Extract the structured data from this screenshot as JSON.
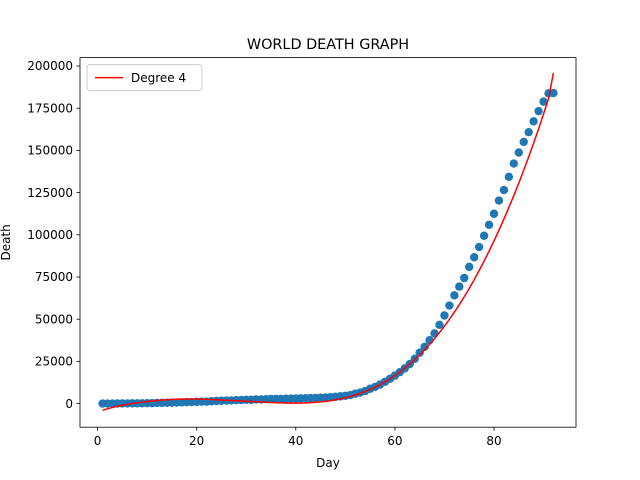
{
  "chart_data": {
    "type": "scatter",
    "title": "WORLD DEATH GRAPH",
    "xlabel": "Day",
    "ylabel": "Death",
    "xlim": [
      -3.55,
      96.55
    ],
    "ylim": [
      -14000,
      205000
    ],
    "xticks": [
      0,
      20,
      40,
      60,
      80
    ],
    "yticks": [
      0,
      25000,
      50000,
      75000,
      100000,
      125000,
      150000,
      175000,
      200000
    ],
    "grid": false,
    "legend": {
      "position": "top-left",
      "entries": [
        "Degree 4"
      ]
    },
    "colors": {
      "points": "#1f77b4",
      "fit": "#ff0000"
    },
    "series": [
      {
        "kind": "scatter",
        "x": [
          1,
          2,
          3,
          4,
          5,
          6,
          7,
          8,
          9,
          10,
          11,
          12,
          13,
          14,
          15,
          16,
          17,
          18,
          19,
          20,
          21,
          22,
          23,
          24,
          25,
          26,
          27,
          28,
          29,
          30,
          31,
          32,
          33,
          34,
          35,
          36,
          37,
          38,
          39,
          40,
          41,
          42,
          43,
          44,
          45,
          46,
          47,
          48,
          49,
          50,
          51,
          52,
          53,
          54,
          55,
          56,
          57,
          58,
          59,
          60,
          61,
          62,
          63,
          64,
          65,
          66,
          67,
          68,
          69,
          70,
          71,
          72,
          73,
          74,
          75,
          76,
          77,
          78,
          79,
          80,
          81,
          82,
          83,
          84,
          85,
          86,
          87,
          88,
          89,
          90,
          91,
          92
        ],
        "y": [
          17,
          18,
          26,
          42,
          56,
          82,
          131,
          133,
          171,
          213,
          259,
          362,
          426,
          492,
          564,
          634,
          719,
          806,
          906,
          1013,
          1113,
          1118,
          1371,
          1523,
          1666,
          1770,
          1868,
          2008,
          2123,
          2247,
          2251,
          2458,
          2469,
          2629,
          2708,
          2770,
          2814,
          2872,
          2941,
          2996,
          3085,
          3160,
          3254,
          3348,
          3460,
          3558,
          3803,
          3996,
          4262,
          4615,
          5027,
          5833,
          6513,
          7437,
          8779,
          9867,
          11291,
          12918,
          14654,
          16574,
          18599,
          20857,
          23434,
          26514,
          30152,
          33625,
          37549,
          41624,
          46675,
          52185,
          58102,
          64123,
          69308,
          74402,
          81005,
          86704,
          92760,
          99437,
          105910,
          112469,
          120271,
          126493,
          134354,
          142210,
          148767,
          155020,
          160814,
          167221,
          173255,
          178910,
          183812,
          184000
        ]
      },
      {
        "kind": "line",
        "name": "Degree 4",
        "x": [
          1,
          2,
          3,
          4,
          5,
          6,
          7,
          8,
          9,
          10,
          11,
          12,
          13,
          14,
          15,
          16,
          17,
          18,
          19,
          20,
          21,
          22,
          23,
          24,
          25,
          26,
          27,
          28,
          29,
          30,
          31,
          32,
          33,
          34,
          35,
          36,
          37,
          38,
          39,
          40,
          41,
          42,
          43,
          44,
          45,
          46,
          47,
          48,
          49,
          50,
          51,
          52,
          53,
          54,
          55,
          56,
          57,
          58,
          59,
          60,
          61,
          62,
          63,
          64,
          65,
          66,
          67,
          68,
          69,
          70,
          71,
          72,
          73,
          74,
          75,
          76,
          77,
          78,
          79,
          80,
          81,
          82,
          83,
          84,
          85,
          86,
          87,
          88,
          89,
          90,
          91,
          92
        ],
        "y": [
          -4000,
          -3100,
          -2300,
          -1600,
          -1000,
          -450,
          0,
          450,
          850,
          1200,
          1550,
          1850,
          2100,
          2300,
          2450,
          2550,
          2650,
          2700,
          2700,
          2700,
          2650,
          2550,
          2450,
          2300,
          2150,
          2000,
          1850,
          1700,
          1550,
          1400,
          1200,
          1050,
          900,
          750,
          600,
          500,
          400,
          350,
          300,
          300,
          350,
          400,
          550,
          750,
          1000,
          1300,
          1700,
          2200,
          2750,
          3400,
          4150,
          5000,
          6000,
          7100,
          8350,
          9700,
          11200,
          12850,
          14650,
          16600,
          18700,
          21000,
          23450,
          26050,
          28850,
          31850,
          35050,
          38450,
          42050,
          45850,
          49900,
          54150,
          58600,
          63300,
          68200,
          73350,
          78750,
          84400,
          90250,
          96350,
          102700,
          109300,
          116150,
          123250,
          130600,
          138250,
          146150,
          154350,
          162800,
          171550,
          180550,
          196000
        ]
      }
    ]
  }
}
